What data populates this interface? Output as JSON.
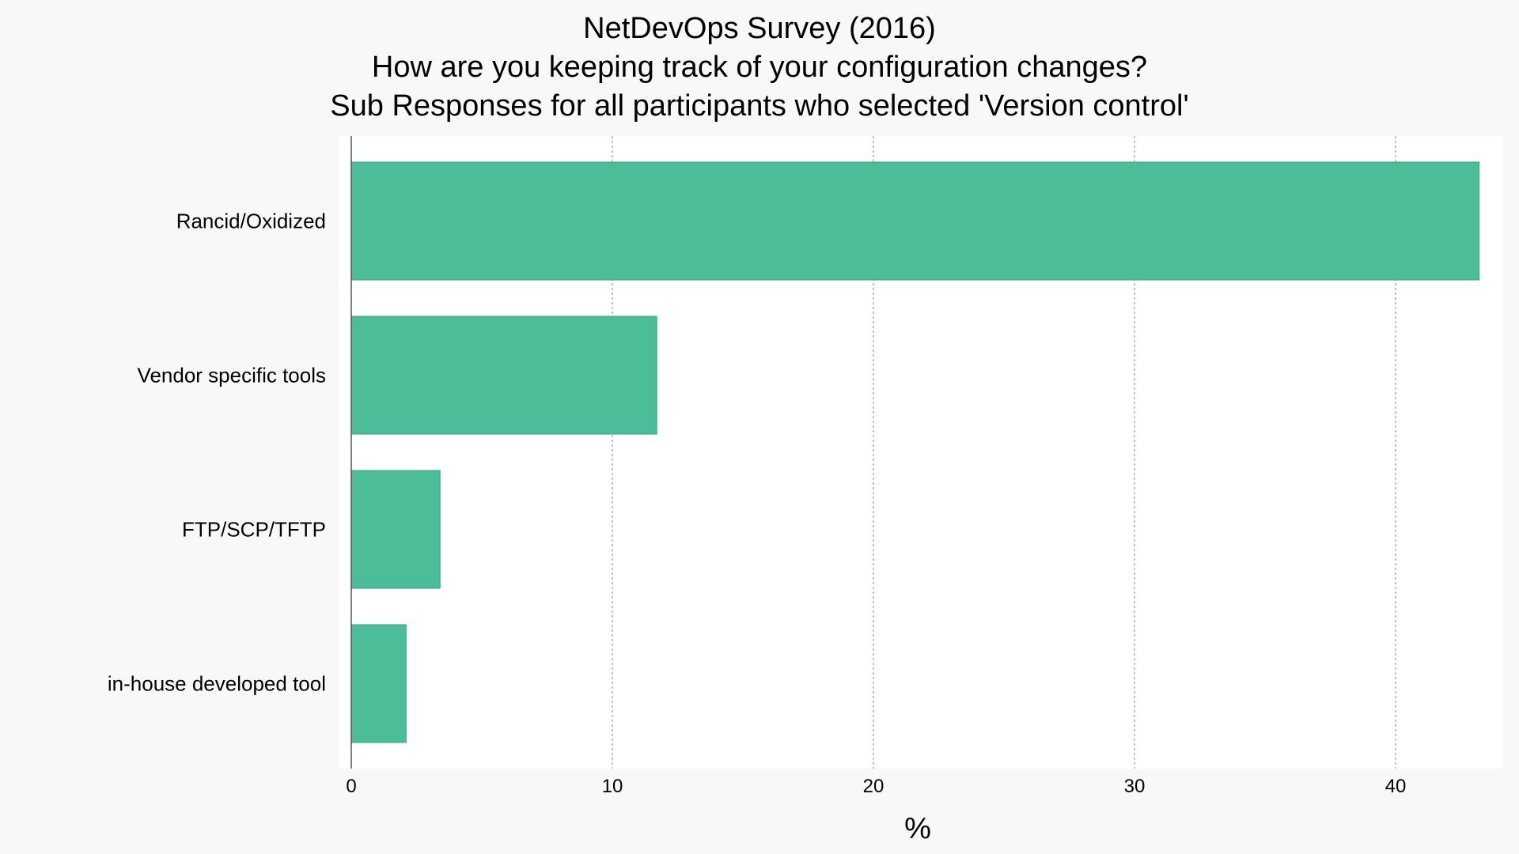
{
  "chart_data": {
    "type": "bar",
    "orientation": "horizontal",
    "title_lines": [
      "NetDevOps Survey (2016)",
      "How are you keeping track of your configuration changes?",
      "Sub Responses for all participants who selected 'Version control'"
    ],
    "categories": [
      "Rancid/Oxidized",
      "Vendor specific tools",
      "FTP/SCP/TFTP",
      "in-house developed tool"
    ],
    "values": [
      43.2,
      11.7,
      3.4,
      2.1
    ],
    "xlabel": "%",
    "ylabel": "",
    "xlim": [
      0,
      44
    ],
    "xticks": [
      0,
      10,
      20,
      30,
      40
    ],
    "grid": "vertical dashed",
    "colors": {
      "bar": "#4cbb9a",
      "bar_edge": "#3aa384",
      "plot_bg": "#ffffff",
      "page_bg": "#f8f8f8",
      "grid": "#999999"
    }
  }
}
